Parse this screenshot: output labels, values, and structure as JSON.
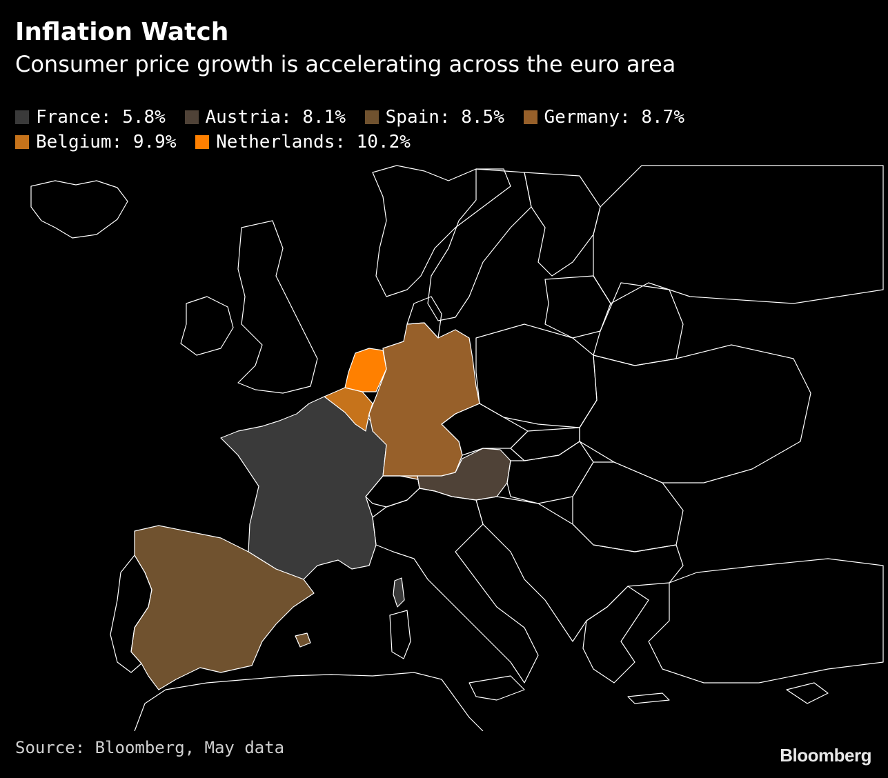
{
  "header": {
    "title": "Inflation Watch",
    "subtitle": "Consumer price growth is accelerating across the euro area"
  },
  "legend": [
    {
      "label": "France: 5.8%",
      "color": "#3a3a3a"
    },
    {
      "label": "Austria: 8.1%",
      "color": "#4f4237"
    },
    {
      "label": "Spain: 8.5%",
      "color": "#70522f"
    },
    {
      "label": "Germany: 8.7%",
      "color": "#97602a"
    },
    {
      "label": "Belgium: 9.9%",
      "color": "#c6731b"
    },
    {
      "label": "Netherlands: 10.2%",
      "color": "#ff8000"
    }
  ],
  "map_data": {
    "type": "choropleth",
    "metric": "Consumer price inflation",
    "regions": [
      {
        "name": "France",
        "value": 5.8,
        "color": "#3a3a3a"
      },
      {
        "name": "Austria",
        "value": 8.1,
        "color": "#4f4237"
      },
      {
        "name": "Spain",
        "value": 8.5,
        "color": "#70522f"
      },
      {
        "name": "Germany",
        "value": 8.7,
        "color": "#97602a"
      },
      {
        "name": "Belgium",
        "value": 9.9,
        "color": "#c6731b"
      },
      {
        "name": "Netherlands",
        "value": 10.2,
        "color": "#ff8000"
      }
    ]
  },
  "footer": {
    "source": "Source: Bloomberg, May data",
    "brand": "Bloomberg"
  }
}
